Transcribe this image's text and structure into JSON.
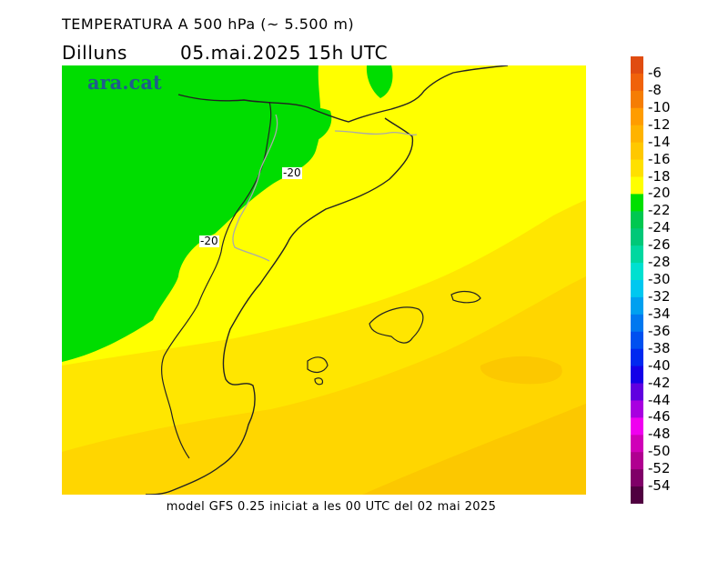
{
  "header": {
    "title": "TEMPERATURA A 500 hPa (~ 5.500 m)",
    "day": "Dilluns",
    "datetime": "05.mai.2025  15h  UTC"
  },
  "branding": {
    "logo": "ara.cat"
  },
  "footer": {
    "text": "model GFS 0.25 iniciat a les 00 UTC del 02 mai 2025"
  },
  "map": {
    "contour_labels": [
      "-20",
      "-20"
    ],
    "palette": {
      "green": "#00dd00",
      "yellow": "#ffff00",
      "gold1": "#ffe600",
      "gold2": "#ffd600",
      "gold3": "#fcc800",
      "coast": "#222222",
      "border": "#aaaaaa"
    }
  },
  "colorbar": {
    "labels": [
      "-6",
      "-8",
      "-10",
      "-12",
      "-14",
      "-16",
      "-18",
      "-20",
      "-22",
      "-24",
      "-26",
      "-28",
      "-30",
      "-32",
      "-34",
      "-36",
      "-38",
      "-40",
      "-42",
      "-44",
      "-46",
      "-48",
      "-50",
      "-52",
      "-54"
    ],
    "colors": [
      "#e04c10",
      "#f0620a",
      "#f57d04",
      "#ff9c00",
      "#ffb300",
      "#ffc800",
      "#ffe000",
      "#ffff00",
      "#00e000",
      "#00c850",
      "#00c878",
      "#00d8a0",
      "#00e0d0",
      "#00c8f0",
      "#00a0f0",
      "#0078f0",
      "#0050f0",
      "#0028f0",
      "#1400e8",
      "#6000e0",
      "#a800e0",
      "#f000f0",
      "#d000b8",
      "#b00090",
      "#800068",
      "#500040"
    ]
  }
}
